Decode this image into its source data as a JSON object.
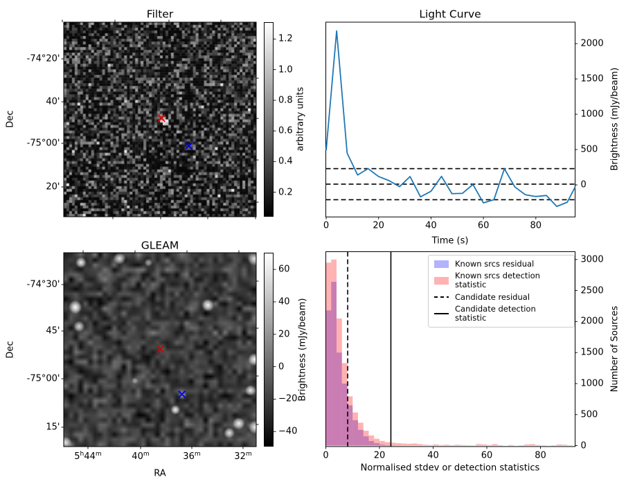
{
  "figure": {
    "background": "#ffffff"
  },
  "panels": {
    "filter": {
      "title": "Filter",
      "ylabel": "Dec",
      "colorbar_label": "arbitrary units"
    },
    "light_curve": {
      "title": "Light Curve",
      "xlabel": "Time (s)",
      "ylabel": "Brightness (mJy/beam)"
    },
    "gleam": {
      "title": "GLEAM",
      "xlabel": "RA",
      "ylabel": "Dec",
      "colorbar_label": "Brightness (mJy/beam)"
    },
    "histogram": {
      "xlabel": "Normalised stdev or detection statistics",
      "ylabel": "Number of Sources",
      "legend": [
        {
          "label": "Known srcs residual",
          "swatch": "patch-blue"
        },
        {
          "label": "Known srcs detection statistic",
          "swatch": "patch-red"
        },
        {
          "label": "Candidate residual",
          "swatch": "line-dashed"
        },
        {
          "label": "Candidate detection statistic",
          "swatch": "line-solid"
        }
      ]
    }
  },
  "chart_data": [
    {
      "type": "heatmap",
      "panel": "filter",
      "title": "Filter",
      "ylabel": "Dec",
      "ytick_labels": [
        "-74°20'",
        "40'",
        "-75°00'",
        "20'"
      ],
      "colorbar": {
        "label": "arbitrary units",
        "ticks": [
          0.2,
          0.4,
          0.6,
          0.8,
          1.0,
          1.2
        ],
        "vmin": 0.04,
        "vmax": 1.31
      },
      "image": {
        "kind": "pixel-noise",
        "grid": 70,
        "seed": 1234
      },
      "markers": [
        {
          "shape": "x",
          "name": "candidate-position",
          "color": "#ff0000",
          "fx": 0.508,
          "fy": 0.494,
          "on_bright_spot": true
        },
        {
          "shape": "x",
          "name": "comparison-position",
          "color": "#0000ee",
          "fx": 0.65,
          "fy": 0.636,
          "on_bright_spot": false
        }
      ]
    },
    {
      "type": "line",
      "panel": "light_curve",
      "title": "Light Curve",
      "xlabel": "Time (s)",
      "ylabel": "Brightness (mJy/beam)",
      "line_color": "#1f77b4",
      "x": [
        0,
        4,
        8,
        12,
        16,
        20,
        24,
        28,
        32,
        36,
        40,
        44,
        48,
        52,
        56,
        60,
        64,
        68,
        72,
        76,
        80,
        84,
        88,
        92,
        95
      ],
      "y": [
        490,
        2180,
        450,
        140,
        230,
        118,
        60,
        -25,
        118,
        -170,
        -90,
        120,
        -125,
        -120,
        5,
        -255,
        -210,
        228,
        -30,
        -140,
        -165,
        -150,
        -305,
        -245,
        -30
      ],
      "hlines": [
        {
          "y": 230,
          "style": "dashed"
        },
        {
          "y": 10,
          "style": "dashed"
        },
        {
          "y": -210,
          "style": "dashed"
        }
      ],
      "xlim": [
        0,
        95
      ],
      "ylim": [
        -455,
        2300
      ],
      "xticks": [
        0,
        20,
        40,
        60,
        80
      ],
      "yticks": [
        0,
        500,
        1000,
        1500,
        2000
      ],
      "yaxis_side": "right",
      "grid": false
    },
    {
      "type": "heatmap",
      "panel": "gleam",
      "title": "GLEAM",
      "xlabel": "RA",
      "ylabel": "Dec",
      "xtick_labels": [
        "5|h|44|m|",
        "40|m|",
        "36|m|",
        "32|m|"
      ],
      "ytick_labels": [
        "-74°30'",
        "45'",
        "-75°00'",
        "15'"
      ],
      "colorbar": {
        "label": "Brightness (mJy/beam)",
        "ticks": [
          60,
          40,
          20,
          0,
          -20,
          -40
        ],
        "vmin": -49.3,
        "vmax": 70.3
      },
      "image": {
        "kind": "smoothed-noise",
        "grid": 40,
        "seed": 777,
        "bright_spots": [
          [
            0.09,
            0.05,
            8,
            0.95
          ],
          [
            0.29,
            0.03,
            9,
            0.9
          ],
          [
            0.99,
            0.03,
            10,
            0.85
          ],
          [
            0.06,
            0.28,
            10,
            0.98
          ],
          [
            0.08,
            0.38,
            8,
            0.8
          ],
          [
            0.75,
            0.27,
            9,
            0.95
          ],
          [
            0.01,
            0.98,
            9,
            0.9
          ],
          [
            0.58,
            0.81,
            7,
            0.95
          ],
          [
            0.99,
            0.55,
            9,
            0.95
          ],
          [
            0.97,
            0.71,
            8,
            0.9
          ],
          [
            0.91,
            0.88,
            9,
            0.95
          ],
          [
            0.995,
            0.9,
            10,
            0.95
          ],
          [
            0.86,
            0.93,
            8,
            0.9
          ],
          [
            0.617,
            0.735,
            6,
            0.5
          ],
          [
            0.37,
            0.66,
            5,
            0.5
          ],
          [
            0.44,
            0.05,
            6,
            0.6
          ]
        ]
      },
      "markers": [
        {
          "shape": "x",
          "name": "candidate-position",
          "color": "#cc0000",
          "fx": 0.503,
          "fy": 0.497
        },
        {
          "shape": "x",
          "name": "comparison-position",
          "color": "#0000ee",
          "fx": 0.614,
          "fy": 0.73
        }
      ]
    },
    {
      "type": "bar",
      "panel": "histogram",
      "xlabel": "Normalised stdev or detection statistics",
      "ylabel": "Number of Sources",
      "bin_width": 2,
      "bin_start": 0,
      "series": [
        {
          "name": "Known srcs residual",
          "color": "rgba(0,0,255,0.3)",
          "values": [
            2180,
            2640,
            1500,
            1000,
            650,
            410,
            255,
            150,
            75,
            40,
            18,
            8,
            4,
            2
          ]
        },
        {
          "name": "Known srcs detection statistic",
          "color": "rgba(255,0,0,0.3)",
          "values": [
            2950,
            3000,
            2050,
            1330,
            795,
            535,
            370,
            240,
            165,
            110,
            75,
            56,
            48,
            40,
            34,
            30,
            35,
            25,
            15,
            10,
            20,
            10,
            15,
            8,
            15,
            10,
            6,
            4,
            25,
            20,
            10,
            25,
            8,
            0,
            10,
            0,
            6,
            20,
            25,
            10,
            5,
            0,
            6,
            20,
            15,
            5
          ]
        }
      ],
      "vlines": [
        {
          "x": 8.15,
          "style": "dashed",
          "label": "Candidate residual"
        },
        {
          "x": 24.25,
          "style": "solid",
          "label": "Candidate detection statistic"
        }
      ],
      "xlim": [
        0,
        92.9
      ],
      "ylim": [
        0,
        3125
      ],
      "xticks": [
        0,
        20,
        40,
        60,
        80
      ],
      "yticks": [
        0,
        500,
        1000,
        1500,
        2000,
        2500,
        3000
      ],
      "yaxis_side": "right",
      "legend_position": "upper right",
      "grid": false
    }
  ]
}
